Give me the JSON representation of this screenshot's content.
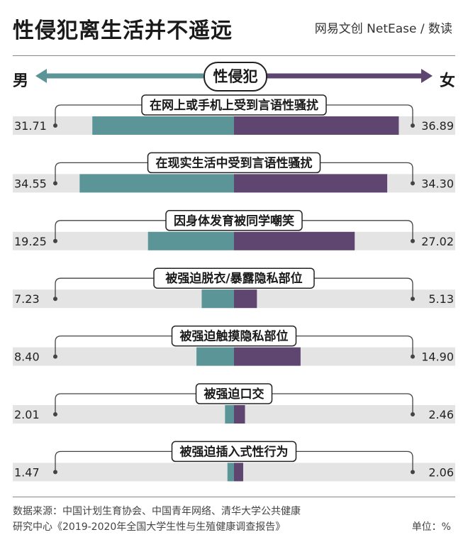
{
  "title": "性侵犯离生活并不遥远",
  "brand": "网易文创 NetEase / 数读",
  "legend": {
    "center_label": "性侵犯",
    "left_label": "男",
    "right_label": "女"
  },
  "colors": {
    "male": "#5b9597",
    "female": "#5e4670",
    "track": "#e4e4e4",
    "male_arrow": "#5b9597",
    "female_arrow": "#5e4670"
  },
  "source_line1": "数据来源：中国计划生育协会、中国青年网络、清华大学公共健康",
  "source_line2": "研究中心《2019-2020年全国大学生性与生殖健康调查报告》",
  "unit": "单位：%",
  "chart_data": {
    "type": "bar",
    "categories": [
      "在网上或手机上受到言语性骚扰",
      "在现实生活中受到言语性骚扰",
      "因身体发育被同学嘲笑",
      "被强迫脱衣/暴露隐私部位",
      "被强迫触摸隐私部位",
      "被强迫口交",
      "被强迫插入式性行为"
    ],
    "series": [
      {
        "name": "男",
        "values": [
          31.71,
          34.55,
          19.25,
          7.23,
          8.4,
          2.01,
          1.47
        ]
      },
      {
        "name": "女",
        "values": [
          36.89,
          34.3,
          27.02,
          5.13,
          14.9,
          2.46,
          2.06
        ]
      }
    ],
    "value_labels_male": [
      "31.71",
      "34.55",
      "19.25",
      "7.23",
      "8.40",
      "2.01",
      "1.47"
    ],
    "value_labels_female": [
      "36.89",
      "34.30",
      "27.02",
      "5.13",
      "14.90",
      "2.46",
      "2.06"
    ],
    "layout": "diverging horizontal bars",
    "grid": false
  }
}
